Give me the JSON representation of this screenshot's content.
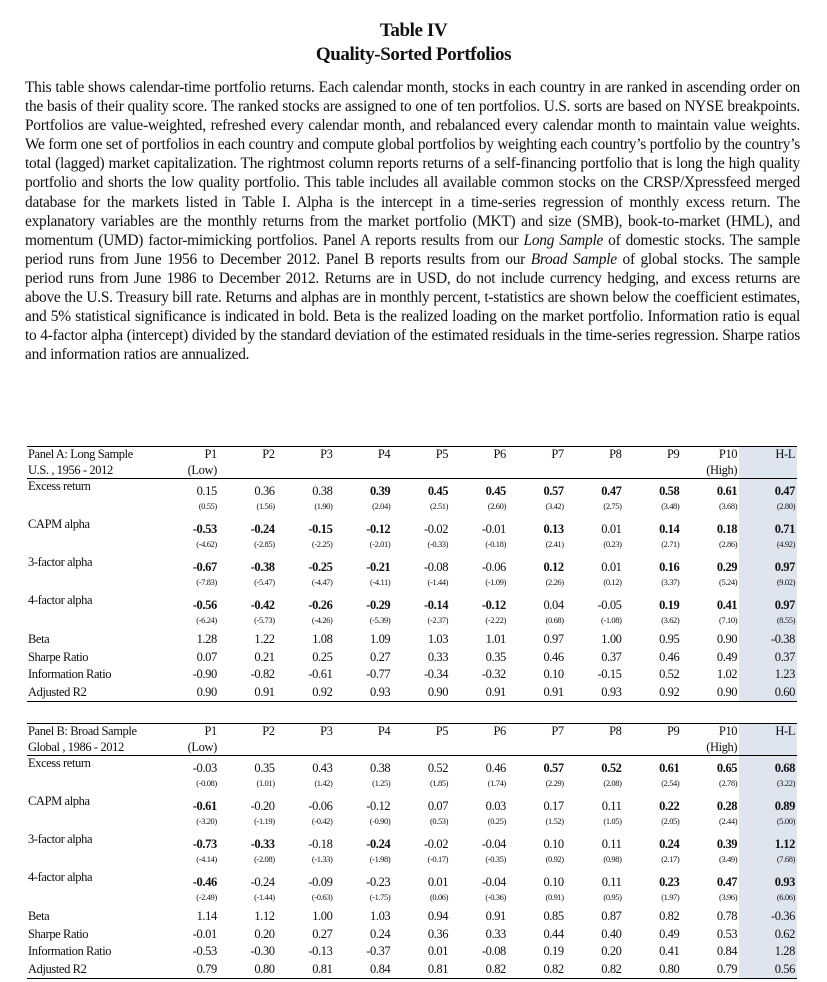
{
  "header": {
    "title": "Table IV",
    "subtitle": "Quality-Sorted Portfolios"
  },
  "description": [
    {
      "text": "This table shows calendar-time portfolio returns. Each calendar month, stocks in each country in are ranked in ascending order on the basis of their quality score. The ranked stocks are assigned to one of ten portfolios. U.S. sorts are based on NYSE breakpoints. Portfolios are value-weighted, refreshed every calendar month, and rebalanced every calendar month to maintain value weights. We form one set of portfolios in each country and compute global portfolios by weighting each country’s portfolio by the country’s total (lagged) market capitalization. The rightmost column reports returns of a self-financing portfolio that is long the high quality portfolio and shorts the low quality portfolio. This table includes all available common stocks on the CRSP/Xpressfeed merged database for the markets listed in Table I. Alpha is the intercept in a time-series regression of monthly excess return. The explanatory variables are the monthly returns from the market portfolio (MKT) and size (SMB), book-to-market (HML), and momentum (UMD) factor-mimicking portfolios. Panel A reports results from our "
    },
    {
      "text": "Long Sample",
      "italic": true
    },
    {
      "text": " of domestic stocks. The sample period runs from June 1956 to December 2012. Panel B reports results from our "
    },
    {
      "text": "Broad Sample",
      "italic": true
    },
    {
      "text": " of global stocks. The sample period runs from June 1986 to December 2012. Returns are in USD, do not include currency hedging, and excess returns are above the U.S. Treasury bill rate. Returns and alphas are in monthly percent, t-statistics are shown below the coefficient estimates, and 5% statistical significance is indicated in bold. Beta is the realized loading on the market portfolio. Information ratio is equal to 4-factor alpha (intercept) divided by the standard deviation of the estimated residuals in the time-series regression. Sharpe ratios and information ratios are annualized."
    }
  ],
  "panels": [
    {
      "title": "Panel A: Long Sample",
      "sample": "U.S. , 1956 - 2012",
      "columns": [
        {
          "label": "P1",
          "note": "(Low)"
        },
        {
          "label": "P2"
        },
        {
          "label": "P3"
        },
        {
          "label": "P4"
        },
        {
          "label": "P5"
        },
        {
          "label": "P6"
        },
        {
          "label": "P7"
        },
        {
          "label": "P8"
        },
        {
          "label": "P9"
        },
        {
          "label": "P10",
          "note": "(High)"
        },
        {
          "label": "H-L"
        }
      ],
      "rows": [
        {
          "label": "Excess return",
          "values": [
            "0.15",
            "0.36",
            "0.38",
            "0.39",
            "0.45",
            "0.45",
            "0.57",
            "0.47",
            "0.58",
            "0.61",
            "0.47"
          ],
          "tstats": [
            "(0.55)",
            "(1.56)",
            "(1.90)",
            "(2.04)",
            "(2.51)",
            "(2.60)",
            "(3.42)",
            "(2.75)",
            "(3.48)",
            "(3.68)",
            "(2.80)"
          ],
          "bold": [
            false,
            false,
            false,
            true,
            true,
            true,
            true,
            true,
            true,
            true,
            true
          ]
        },
        {
          "label": "CAPM alpha",
          "values": [
            "-0.53",
            "-0.24",
            "-0.15",
            "-0.12",
            "-0.02",
            "-0.01",
            "0.13",
            "0.01",
            "0.14",
            "0.18",
            "0.71"
          ],
          "tstats": [
            "(-4.62)",
            "(-2.85)",
            "(-2.25)",
            "(-2.01)",
            "(-0.33)",
            "(-0.18)",
            "(2.41)",
            "(0.23)",
            "(2.71)",
            "(2.86)",
            "(4.92)"
          ],
          "bold": [
            true,
            true,
            true,
            true,
            false,
            false,
            true,
            false,
            true,
            true,
            true
          ]
        },
        {
          "label": "3-factor alpha",
          "values": [
            "-0.67",
            "-0.38",
            "-0.25",
            "-0.21",
            "-0.08",
            "-0.06",
            "0.12",
            "0.01",
            "0.16",
            "0.29",
            "0.97"
          ],
          "tstats": [
            "(-7.83)",
            "(-5.47)",
            "(-4.47)",
            "(-4.11)",
            "(-1.44)",
            "(-1.09)",
            "(2.26)",
            "(0.12)",
            "(3.37)",
            "(5.24)",
            "(9.02)"
          ],
          "bold": [
            true,
            true,
            true,
            true,
            false,
            false,
            true,
            false,
            true,
            true,
            true
          ]
        },
        {
          "label": "4-factor alpha",
          "values": [
            "-0.56",
            "-0.42",
            "-0.26",
            "-0.29",
            "-0.14",
            "-0.12",
            "0.04",
            "-0.05",
            "0.19",
            "0.41",
            "0.97"
          ],
          "tstats": [
            "(-6.24)",
            "(-5.73)",
            "(-4.26)",
            "(-5.39)",
            "(-2.37)",
            "(-2.22)",
            "(0.68)",
            "(-1.08)",
            "(3.62)",
            "(7.10)",
            "(8.55)"
          ],
          "bold": [
            true,
            true,
            true,
            true,
            true,
            true,
            false,
            false,
            true,
            true,
            true
          ]
        },
        {
          "label": "Beta",
          "values": [
            "1.28",
            "1.22",
            "1.08",
            "1.09",
            "1.03",
            "1.01",
            "0.97",
            "1.00",
            "0.95",
            "0.90",
            "-0.38"
          ]
        },
        {
          "label": "Sharpe Ratio",
          "values": [
            "0.07",
            "0.21",
            "0.25",
            "0.27",
            "0.33",
            "0.35",
            "0.46",
            "0.37",
            "0.46",
            "0.49",
            "0.37"
          ]
        },
        {
          "label": "Information Ratio",
          "values": [
            "-0.90",
            "-0.82",
            "-0.61",
            "-0.77",
            "-0.34",
            "-0.32",
            "0.10",
            "-0.15",
            "0.52",
            "1.02",
            "1.23"
          ]
        },
        {
          "label": "Adjusted R2",
          "values": [
            "0.90",
            "0.91",
            "0.92",
            "0.93",
            "0.90",
            "0.91",
            "0.91",
            "0.93",
            "0.92",
            "0.90",
            "0.60"
          ]
        }
      ]
    },
    {
      "title": "Panel B: Broad Sample",
      "sample": "Global , 1986 - 2012",
      "columns": [
        {
          "label": "P1",
          "note": "(Low)"
        },
        {
          "label": "P2"
        },
        {
          "label": "P3"
        },
        {
          "label": "P4"
        },
        {
          "label": "P5"
        },
        {
          "label": "P6"
        },
        {
          "label": "P7"
        },
        {
          "label": "P8"
        },
        {
          "label": "P9"
        },
        {
          "label": "P10",
          "note": "(High)"
        },
        {
          "label": "H-L"
        }
      ],
      "rows": [
        {
          "label": "Excess return",
          "values": [
            "-0.03",
            "0.35",
            "0.43",
            "0.38",
            "0.52",
            "0.46",
            "0.57",
            "0.52",
            "0.61",
            "0.65",
            "0.68"
          ],
          "tstats": [
            "(-0.08)",
            "(1.01)",
            "(1.42)",
            "(1.25)",
            "(1.85)",
            "(1.74)",
            "(2.29)",
            "(2.08)",
            "(2.54)",
            "(2.78)",
            "(3.22)"
          ],
          "bold": [
            false,
            false,
            false,
            false,
            false,
            false,
            true,
            true,
            true,
            true,
            true
          ]
        },
        {
          "label": "CAPM alpha",
          "values": [
            "-0.61",
            "-0.20",
            "-0.06",
            "-0.12",
            "0.07",
            "0.03",
            "0.17",
            "0.11",
            "0.22",
            "0.28",
            "0.89"
          ],
          "tstats": [
            "(-3.20)",
            "(-1.19)",
            "(-0.42)",
            "(-0.90)",
            "(0.53)",
            "(0.25)",
            "(1.52)",
            "(1.05)",
            "(2.05)",
            "(2.44)",
            "(5.00)"
          ],
          "bold": [
            true,
            false,
            false,
            false,
            false,
            false,
            false,
            false,
            true,
            true,
            true
          ]
        },
        {
          "label": "3-factor alpha",
          "values": [
            "-0.73",
            "-0.33",
            "-0.18",
            "-0.24",
            "-0.02",
            "-0.04",
            "0.10",
            "0.11",
            "0.24",
            "0.39",
            "1.12"
          ],
          "tstats": [
            "(-4.14)",
            "(-2.08)",
            "(-1.33)",
            "(-1.98)",
            "(-0.17)",
            "(-0.35)",
            "(0.92)",
            "(0.98)",
            "(2.17)",
            "(3.49)",
            "(7.68)"
          ],
          "bold": [
            true,
            true,
            false,
            true,
            false,
            false,
            false,
            false,
            true,
            true,
            true
          ]
        },
        {
          "label": "4-factor alpha",
          "values": [
            "-0.46",
            "-0.24",
            "-0.09",
            "-0.23",
            "0.01",
            "-0.04",
            "0.10",
            "0.11",
            "0.23",
            "0.47",
            "0.93"
          ],
          "tstats": [
            "(-2.49)",
            "(-1.44)",
            "(-0.63)",
            "(-1.75)",
            "(0.06)",
            "(-0.36)",
            "(0.91)",
            "(0.95)",
            "(1.97)",
            "(3.96)",
            "(6.06)"
          ],
          "bold": [
            true,
            false,
            false,
            false,
            false,
            false,
            false,
            false,
            true,
            true,
            true
          ]
        },
        {
          "label": "Beta",
          "values": [
            "1.14",
            "1.12",
            "1.00",
            "1.03",
            "0.94",
            "0.91",
            "0.85",
            "0.87",
            "0.82",
            "0.78",
            "-0.36"
          ]
        },
        {
          "label": "Sharpe Ratio",
          "values": [
            "-0.01",
            "0.20",
            "0.27",
            "0.24",
            "0.36",
            "0.33",
            "0.44",
            "0.40",
            "0.49",
            "0.53",
            "0.62"
          ]
        },
        {
          "label": "Information Ratio",
          "values": [
            "-0.53",
            "-0.30",
            "-0.13",
            "-0.37",
            "0.01",
            "-0.08",
            "0.19",
            "0.20",
            "0.41",
            "0.84",
            "1.28"
          ]
        },
        {
          "label": "Adjusted R2",
          "values": [
            "0.79",
            "0.80",
            "0.81",
            "0.84",
            "0.81",
            "0.82",
            "0.82",
            "0.82",
            "0.80",
            "0.79",
            "0.56"
          ]
        }
      ]
    }
  ]
}
